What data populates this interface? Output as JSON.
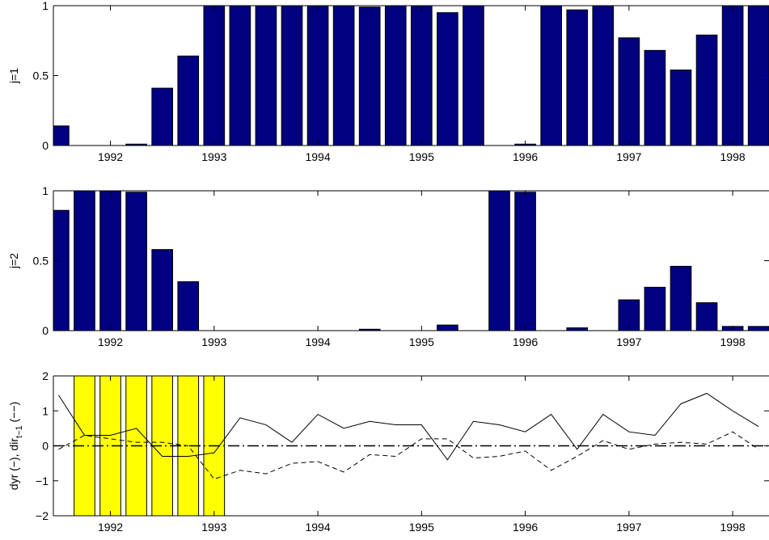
{
  "chart_data": [
    {
      "type": "bar",
      "ylabel": "j=1",
      "ylim": [
        0,
        1
      ],
      "xlim": [
        1991.45,
        1998.35
      ],
      "yticks": [
        0,
        0.5,
        1
      ],
      "ytick_labels": [
        "0",
        "0.5",
        "1"
      ],
      "xticks": [
        1992,
        1993,
        1994,
        1995,
        1996,
        1997,
        1998
      ],
      "xtick_labels": [
        "1992",
        "1993",
        "1994",
        "1995",
        "1996",
        "1997",
        "1998"
      ],
      "bar_color": "#000080",
      "x": [
        1991.5,
        1991.75,
        1992.0,
        1992.25,
        1992.5,
        1992.75,
        1993.0,
        1993.25,
        1993.5,
        1993.75,
        1994.0,
        1994.25,
        1994.5,
        1994.75,
        1995.0,
        1995.25,
        1995.5,
        1995.75,
        1996.0,
        1996.25,
        1996.5,
        1996.75,
        1997.0,
        1997.25,
        1997.5,
        1997.75,
        1998.0,
        1998.25
      ],
      "values": [
        0.14,
        0.0,
        0.0,
        0.01,
        0.41,
        0.64,
        1.0,
        1.0,
        1.0,
        1.0,
        1.0,
        1.0,
        0.99,
        1.0,
        1.0,
        0.95,
        1.0,
        0.0,
        0.01,
        1.0,
        0.97,
        1.0,
        0.77,
        0.68,
        0.54,
        0.79,
        1.0,
        1.0
      ]
    },
    {
      "type": "bar",
      "ylabel": "j=2",
      "ylim": [
        0,
        1
      ],
      "xlim": [
        1991.45,
        1998.35
      ],
      "yticks": [
        0,
        0.5,
        1
      ],
      "ytick_labels": [
        "0",
        "0.5",
        "1"
      ],
      "xticks": [
        1992,
        1993,
        1994,
        1995,
        1996,
        1997,
        1998
      ],
      "xtick_labels": [
        "1992",
        "1993",
        "1994",
        "1995",
        "1996",
        "1997",
        "1998"
      ],
      "bar_color": "#000080",
      "x": [
        1991.5,
        1991.75,
        1992.0,
        1992.25,
        1992.5,
        1992.75,
        1993.0,
        1993.25,
        1993.5,
        1993.75,
        1994.0,
        1994.25,
        1994.5,
        1994.75,
        1995.0,
        1995.25,
        1995.5,
        1995.75,
        1996.0,
        1996.25,
        1996.5,
        1996.75,
        1997.0,
        1997.25,
        1997.5,
        1997.75,
        1998.0,
        1998.25
      ],
      "values": [
        0.86,
        1.0,
        1.0,
        0.99,
        0.58,
        0.35,
        0.0,
        0.0,
        0.0,
        0.0,
        0.0,
        0.0,
        0.01,
        0.0,
        0.0,
        0.04,
        0.0,
        1.0,
        0.99,
        0.0,
        0.02,
        0.0,
        0.22,
        0.31,
        0.46,
        0.2,
        0.03,
        0.03
      ]
    },
    {
      "type": "line",
      "ylabel": "dyr (−), dir",
      "ylabel_sub": "t−1",
      "ylabel_tail": " (−−)",
      "ylim": [
        -2,
        2
      ],
      "xlim": [
        1991.45,
        1998.35
      ],
      "yticks": [
        -2,
        -1,
        0,
        1,
        2
      ],
      "ytick_labels": [
        "−2",
        "−1",
        "0",
        "1",
        "2"
      ],
      "xticks": [
        1992,
        1993,
        1994,
        1995,
        1996,
        1997,
        1998
      ],
      "xtick_labels": [
        "1992",
        "1993",
        "1994",
        "1995",
        "1996",
        "1997",
        "1998"
      ],
      "highlight_color": "#ffff00",
      "highlight_x": [
        1991.75,
        1992.0,
        1992.25,
        1992.5,
        1992.75,
        1993.0
      ],
      "x": [
        1991.5,
        1991.75,
        1992.0,
        1992.25,
        1992.5,
        1992.75,
        1993.0,
        1993.25,
        1993.5,
        1993.75,
        1994.0,
        1994.25,
        1994.5,
        1994.75,
        1995.0,
        1995.25,
        1995.5,
        1995.75,
        1996.0,
        1996.25,
        1996.5,
        1996.75,
        1997.0,
        1997.25,
        1997.5,
        1997.75,
        1998.0,
        1998.25
      ],
      "series": [
        {
          "style": "solid",
          "values": [
            1.45,
            0.3,
            0.3,
            0.5,
            -0.3,
            -0.3,
            -0.2,
            0.8,
            0.6,
            0.1,
            0.9,
            0.5,
            0.7,
            0.6,
            0.6,
            -0.4,
            0.7,
            0.6,
            0.4,
            0.9,
            -0.1,
            0.9,
            0.4,
            0.3,
            1.2,
            1.5,
            1.0,
            0.55
          ]
        },
        {
          "style": "dashed",
          "values": [
            -0.1,
            0.3,
            0.2,
            0.1,
            0.1,
            0.0,
            -0.95,
            -0.7,
            -0.8,
            -0.5,
            -0.45,
            -0.75,
            -0.25,
            -0.3,
            0.2,
            0.2,
            -0.35,
            -0.3,
            -0.15,
            -0.7,
            -0.3,
            0.15,
            -0.1,
            0.05,
            0.1,
            0.05,
            0.4,
            -0.1
          ]
        }
      ]
    }
  ]
}
